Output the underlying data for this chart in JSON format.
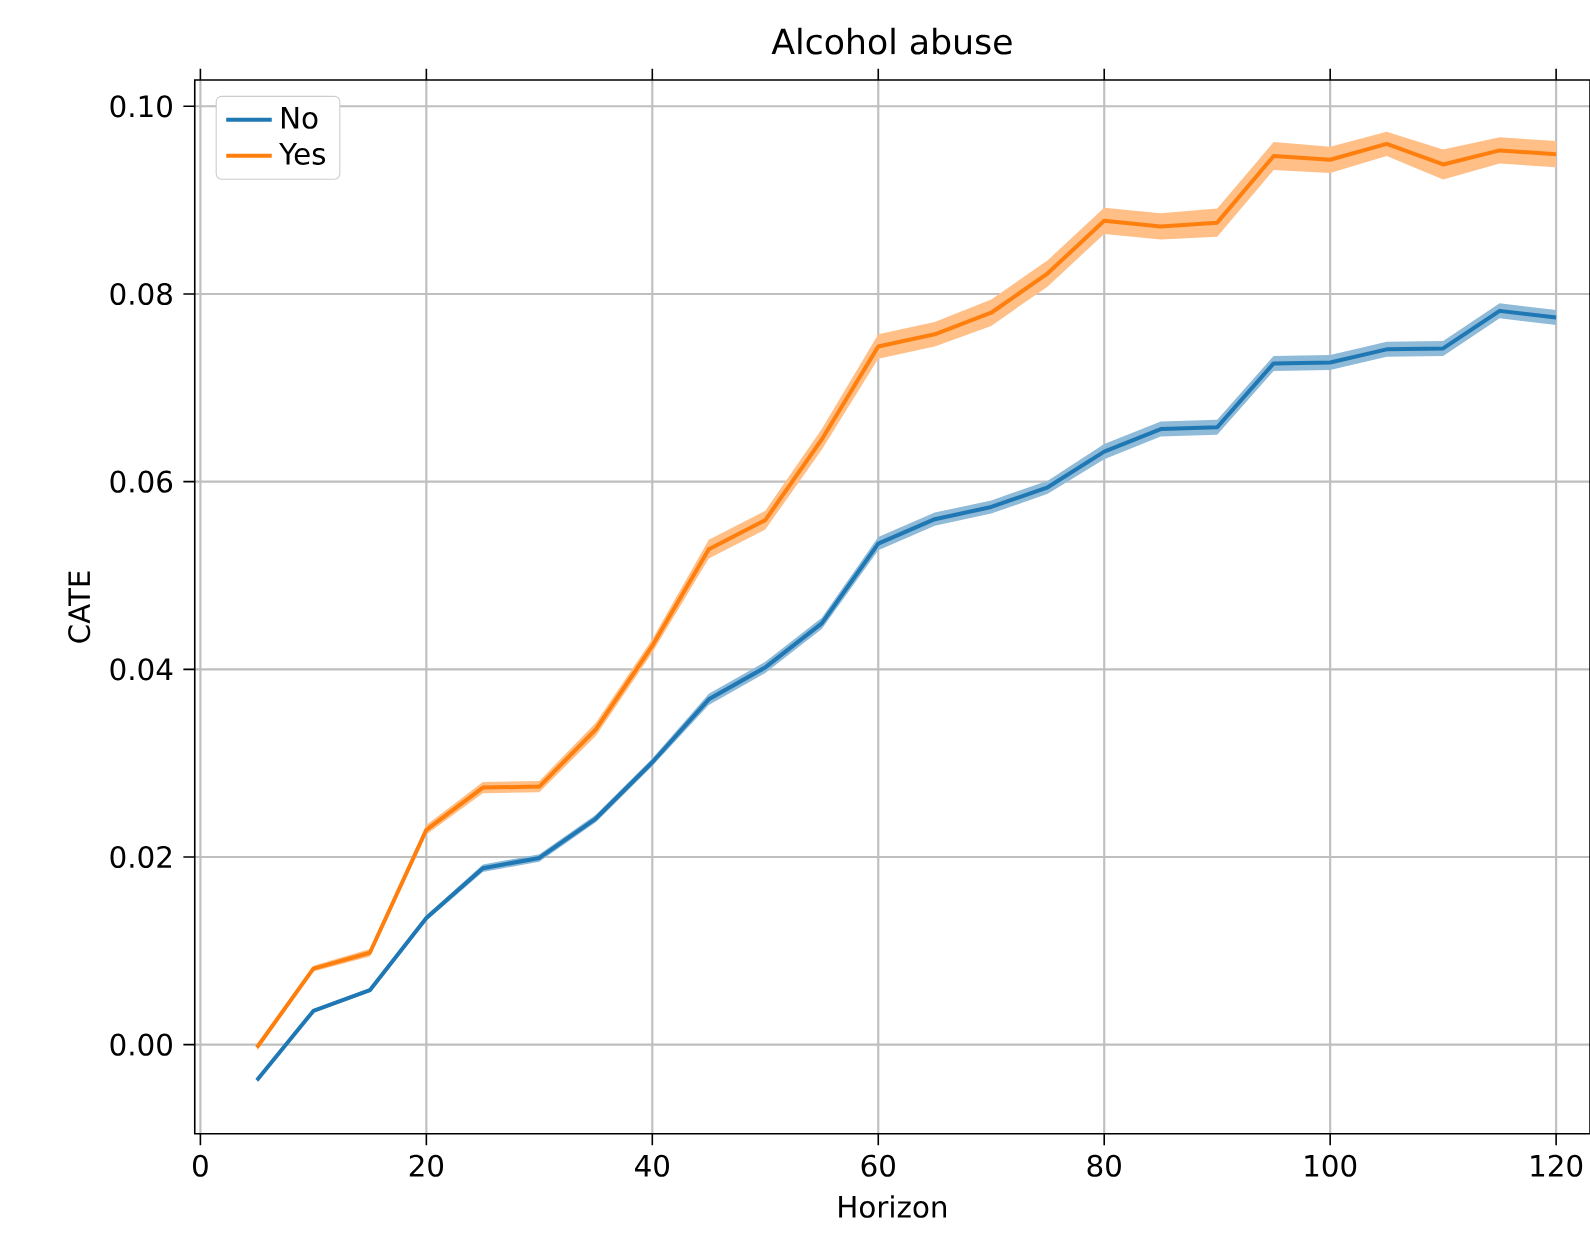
{
  "chart_data": {
    "type": "line",
    "title": "Alcohol abuse",
    "xlabel": "Horizon",
    "ylabel": "CATE",
    "x": [
      5,
      10,
      15,
      20,
      25,
      30,
      35,
      40,
      45,
      50,
      55,
      60,
      65,
      70,
      75,
      80,
      85,
      90,
      95,
      100,
      105,
      110,
      115,
      120
    ],
    "series": [
      {
        "name": "No",
        "color": "#1f77b4",
        "values": [
          -0.0038,
          0.0036,
          0.0058,
          0.0135,
          0.0188,
          0.0199,
          0.0241,
          0.0301,
          0.0368,
          0.0402,
          0.0449,
          0.0534,
          0.056,
          0.0573,
          0.0594,
          0.0632,
          0.0656,
          0.0658,
          0.0726,
          0.0727,
          0.0741,
          0.0742,
          0.0782,
          0.0775
        ],
        "lower": [
          -0.004,
          0.0034,
          0.0056,
          0.0132,
          0.0184,
          0.0195,
          0.0237,
          0.0297,
          0.0362,
          0.0396,
          0.0443,
          0.0527,
          0.0553,
          0.0566,
          0.0587,
          0.0624,
          0.0648,
          0.065,
          0.0718,
          0.0719,
          0.0733,
          0.0734,
          0.0774,
          0.0767
        ],
        "upper": [
          -0.0036,
          0.0038,
          0.006,
          0.0138,
          0.0192,
          0.0203,
          0.0245,
          0.0305,
          0.0374,
          0.0408,
          0.0455,
          0.0541,
          0.0567,
          0.058,
          0.0601,
          0.064,
          0.0664,
          0.0666,
          0.0734,
          0.0735,
          0.0749,
          0.075,
          0.079,
          0.0783
        ]
      },
      {
        "name": "Yes",
        "color": "#ff7f0e",
        "values": [
          -0.0003,
          0.0081,
          0.0098,
          0.0229,
          0.0274,
          0.0275,
          0.0336,
          0.0425,
          0.0528,
          0.0559,
          0.0645,
          0.0744,
          0.0757,
          0.078,
          0.0822,
          0.0878,
          0.0872,
          0.0876,
          0.0947,
          0.0943,
          0.096,
          0.0938,
          0.0953,
          0.0949
        ],
        "lower": [
          -0.0006,
          0.0078,
          0.0094,
          0.0224,
          0.0268,
          0.0269,
          0.0329,
          0.0418,
          0.0518,
          0.0549,
          0.0634,
          0.0731,
          0.0744,
          0.0766,
          0.0808,
          0.0864,
          0.0858,
          0.0861,
          0.0932,
          0.0929,
          0.0947,
          0.0922,
          0.0939,
          0.0935
        ],
        "upper": [
          0.0,
          0.0084,
          0.0102,
          0.0234,
          0.028,
          0.0281,
          0.0343,
          0.0432,
          0.0538,
          0.0569,
          0.0656,
          0.0757,
          0.077,
          0.0794,
          0.0836,
          0.0892,
          0.0886,
          0.0891,
          0.0962,
          0.0957,
          0.0973,
          0.0954,
          0.0967,
          0.0963
        ]
      }
    ],
    "xlim": [
      -0.5,
      123
    ],
    "ylim": [
      -0.0095,
      0.1028
    ],
    "xticks": [
      0,
      20,
      40,
      60,
      80,
      100,
      120
    ],
    "yticks": [
      {
        "value": 0,
        "label": "0.00"
      },
      {
        "value": 0.02,
        "label": "0.02"
      },
      {
        "value": 0.04,
        "label": "0.04"
      },
      {
        "value": 0.06,
        "label": "0.06"
      },
      {
        "value": 0.08,
        "label": "0.08"
      },
      {
        "value": 0.1,
        "label": "0.10"
      }
    ],
    "grid": true,
    "legend": "top left",
    "line_style": "solid",
    "marker": "none"
  }
}
